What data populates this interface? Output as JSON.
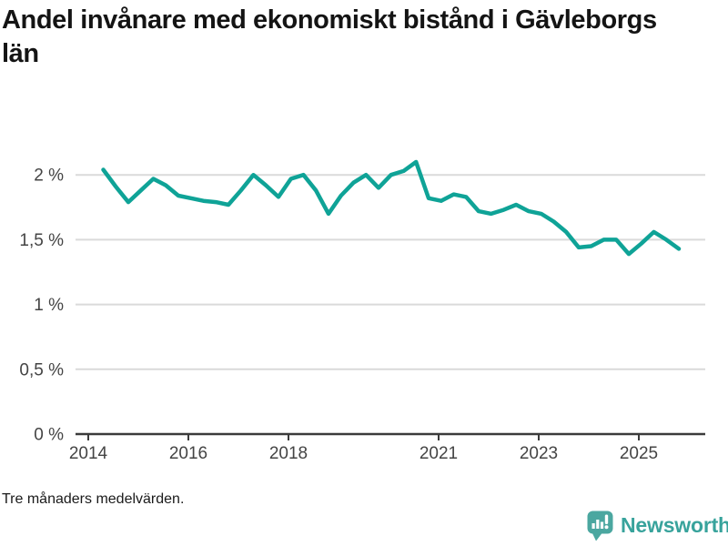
{
  "header": {
    "title": "Andel invånare med ekonomiskt bistånd i Gävleborgs län"
  },
  "chart_data": {
    "type": "line",
    "title": "Andel invånare med ekonomiskt bistånd i Gävleborgs län",
    "subtitle": "",
    "xlabel": "",
    "ylabel": "",
    "unit": "%",
    "grid": "horizontal",
    "legend": "none",
    "ylim": [
      0,
      2.25
    ],
    "xlim": [
      2013.75,
      2026.33
    ],
    "line_color": "#0fa397",
    "gridline_color": "#dadada",
    "axis_color": "#3b3b3b",
    "label_color": "#444444",
    "y_axis": {
      "ticks": [
        {
          "value": 0,
          "label": "0 %"
        },
        {
          "value": 0.5,
          "label": "0,5 %"
        },
        {
          "value": 1,
          "label": "1 %"
        },
        {
          "value": 1.5,
          "label": "1,5 %"
        },
        {
          "value": 2,
          "label": "2 %"
        }
      ]
    },
    "x_axis": {
      "ticks": [
        {
          "value": 2014,
          "label": "2014"
        },
        {
          "value": 2016,
          "label": "2016"
        },
        {
          "value": 2018,
          "label": "2018"
        },
        {
          "value": 2021,
          "label": "2021"
        },
        {
          "value": 2023,
          "label": "2023"
        },
        {
          "value": 2025,
          "label": "2025"
        }
      ]
    },
    "series": [
      {
        "name": "Gävleborgs län",
        "x": [
          2014.3,
          2014.55,
          2014.8,
          2015.05,
          2015.3,
          2015.55,
          2015.8,
          2016.05,
          2016.3,
          2016.55,
          2016.8,
          2017.05,
          2017.3,
          2017.55,
          2017.8,
          2018.05,
          2018.3,
          2018.55,
          2018.8,
          2019.05,
          2019.3,
          2019.55,
          2019.8,
          2020.05,
          2020.3,
          2020.55,
          2020.8,
          2021.05,
          2021.3,
          2021.55,
          2021.8,
          2022.05,
          2022.3,
          2022.55,
          2022.8,
          2023.05,
          2023.3,
          2023.55,
          2023.8,
          2024.05,
          2024.3,
          2024.55,
          2024.8,
          2025.05,
          2025.3,
          2025.55,
          2025.8
        ],
        "values": [
          2.04,
          1.91,
          1.79,
          1.88,
          1.97,
          1.92,
          1.84,
          1.82,
          1.8,
          1.79,
          1.77,
          1.88,
          2.0,
          1.92,
          1.83,
          1.97,
          2.0,
          1.88,
          1.7,
          1.84,
          1.94,
          2.0,
          1.9,
          2.0,
          2.03,
          2.1,
          1.82,
          1.8,
          1.85,
          1.83,
          1.72,
          1.7,
          1.73,
          1.77,
          1.72,
          1.7,
          1.64,
          1.56,
          1.44,
          1.45,
          1.5,
          1.5,
          1.39,
          1.47,
          1.56,
          1.5,
          1.43
        ]
      }
    ]
  },
  "footer": {
    "note": "Tre månaders medelvärden.",
    "brand": "Newsworthy"
  },
  "icons": {
    "logo": "newsworthy-bar-chart-bubble-icon",
    "logo_color": "#4ba7a0"
  }
}
